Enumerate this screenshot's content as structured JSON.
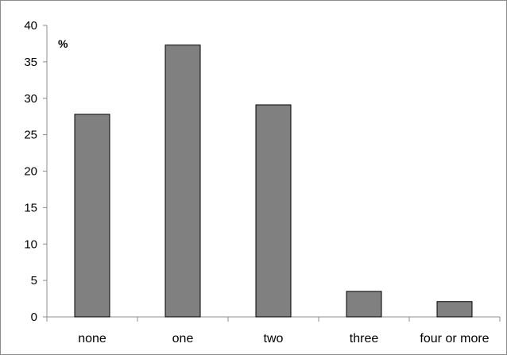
{
  "chart_data": {
    "type": "bar",
    "unit_label": "%",
    "categories": [
      "none",
      "one",
      "two",
      "three",
      "four or more"
    ],
    "values": [
      27.8,
      37.3,
      29.1,
      3.5,
      2.1
    ],
    "ylim": [
      0,
      40
    ],
    "yticks": [
      0,
      5,
      10,
      15,
      20,
      25,
      30,
      35,
      40
    ],
    "grid": false,
    "legend": "none",
    "colors": {
      "bar_fill": "#808080",
      "bar_stroke": "#000000",
      "axis": "#8c8c8c"
    }
  }
}
